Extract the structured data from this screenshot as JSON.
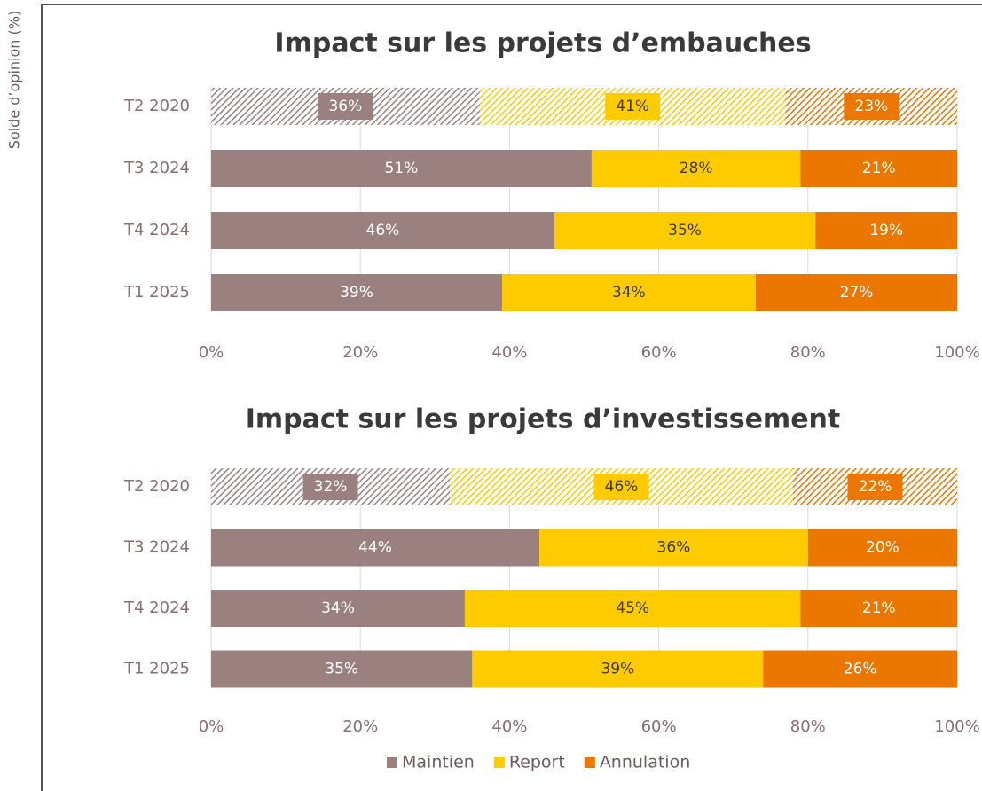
{
  "chart_data": [
    {
      "type": "bar",
      "orientation": "horizontal",
      "stacked": true,
      "ylabel": "Solde d’opinion (%)",
      "title": "Impact sur les projets d’embauches",
      "categories": [
        "T2 2020",
        "T3 2024",
        "T4 2024",
        "T1 2025"
      ],
      "hatched": [
        true,
        false,
        false,
        false
      ],
      "series": [
        {
          "name": "Maintien",
          "color": "#9a8180",
          "values": [
            36,
            51,
            46,
            39
          ],
          "value_labels": [
            "36%",
            "51%",
            "46%",
            "39%"
          ]
        },
        {
          "name": "Report",
          "color": "#fecb00",
          "values": [
            41,
            28,
            35,
            34
          ],
          "value_labels": [
            "41%",
            "28%",
            "35%",
            "34%"
          ]
        },
        {
          "name": "Annulation",
          "color": "#eb7600",
          "values": [
            23,
            21,
            19,
            27
          ],
          "value_labels": [
            "23%",
            "21%",
            "19%",
            "27%"
          ]
        }
      ],
      "xlim": [
        0,
        100
      ],
      "xticks": [
        {
          "value": 0,
          "label": "0%"
        },
        {
          "value": 20,
          "label": "20%"
        },
        {
          "value": 40,
          "label": "40%"
        },
        {
          "value": 60,
          "label": "60%"
        },
        {
          "value": 80,
          "label": "80%"
        },
        {
          "value": 100,
          "label": "100%"
        }
      ],
      "grid": true
    },
    {
      "type": "bar",
      "orientation": "horizontal",
      "stacked": true,
      "title": "Impact sur les projets d’investissement",
      "categories": [
        "T2 2020",
        "T3 2024",
        "T4 2024",
        "T1 2025"
      ],
      "hatched": [
        true,
        false,
        false,
        false
      ],
      "series": [
        {
          "name": "Maintien",
          "color": "#9a8180",
          "values": [
            32,
            44,
            34,
            35
          ],
          "value_labels": [
            "32%",
            "44%",
            "34%",
            "35%"
          ]
        },
        {
          "name": "Report",
          "color": "#fecb00",
          "values": [
            46,
            36,
            45,
            39
          ],
          "value_labels": [
            "46%",
            "36%",
            "45%",
            "39%"
          ]
        },
        {
          "name": "Annulation",
          "color": "#eb7600",
          "values": [
            22,
            20,
            21,
            26
          ],
          "value_labels": [
            "22%",
            "20%",
            "21%",
            "26%"
          ]
        }
      ],
      "xlim": [
        0,
        100
      ],
      "xticks": [
        {
          "value": 0,
          "label": "0%"
        },
        {
          "value": 20,
          "label": "20%"
        },
        {
          "value": 40,
          "label": "40%"
        },
        {
          "value": 60,
          "label": "60%"
        },
        {
          "value": 80,
          "label": "80%"
        },
        {
          "value": 100,
          "label": "100%"
        }
      ],
      "grid": true,
      "legend": "bottom"
    }
  ]
}
